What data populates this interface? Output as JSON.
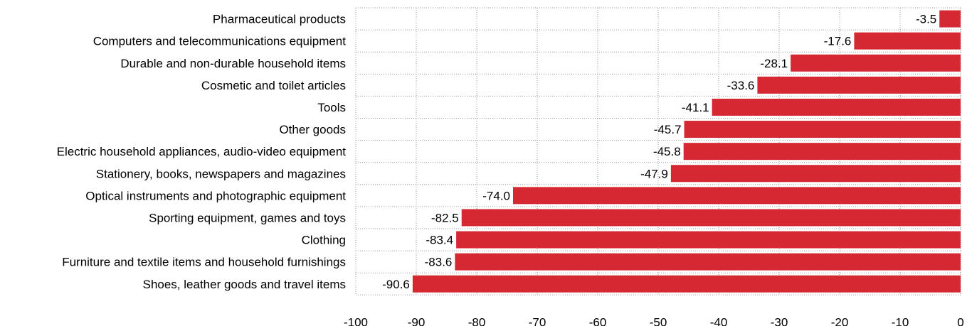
{
  "chart_data": {
    "type": "bar",
    "orientation": "horizontal",
    "title": "",
    "xlabel": "",
    "ylabel": "",
    "xlim": [
      -100,
      0
    ],
    "x_ticks": [
      -100,
      -90,
      -80,
      -70,
      -60,
      -50,
      -40,
      -30,
      -20,
      -10,
      0
    ],
    "grid": true,
    "legend": "none",
    "bar_color": "#d62832",
    "categories": [
      "Pharmaceutical products",
      "Computers and telecommunications equipment",
      "Durable and non-durable household items",
      "Cosmetic and toilet articles",
      "Tools",
      "Other goods",
      "Electric household appliances, audio-video equipment",
      "Stationery, books, newspapers and magazines",
      "Optical instruments and photographic equipment",
      "Sporting equipment, games and toys",
      "Clothing",
      "Furniture and textile items and household furnishings",
      "Shoes, leather goods and travel items"
    ],
    "values": [
      -3.5,
      -17.6,
      -28.1,
      -33.6,
      -41.1,
      -45.7,
      -45.8,
      -47.9,
      -74.0,
      -82.5,
      -83.4,
      -83.6,
      -90.6
    ],
    "value_labels": [
      "-3.5",
      "-17.6",
      "-28.1",
      "-33.6",
      "-41.1",
      "-45.7",
      "-45.8",
      "-47.9",
      "-74.0",
      "-82.5",
      "-83.4",
      "-83.6",
      "-90.6"
    ]
  }
}
